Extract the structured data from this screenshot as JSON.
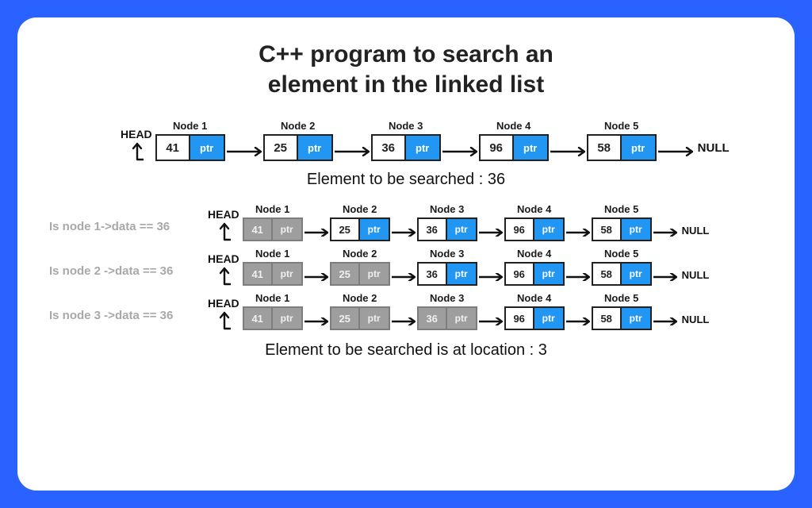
{
  "colors": {
    "page_bg": "#2962ff",
    "card_bg": "#ffffff",
    "ptr_bg": "#2196f3",
    "gray_bg": "#9e9e9e",
    "text": "#222222",
    "muted": "#a8a8a8"
  },
  "title_line1": "C++ program to search an",
  "title_line2": "element in the linked list",
  "head_label": "HEAD",
  "null_label": "NULL",
  "ptr_label": "ptr",
  "main_list": {
    "nodes": [
      {
        "label": "Node 1",
        "value": "41"
      },
      {
        "label": "Node 2",
        "value": "25"
      },
      {
        "label": "Node 3",
        "value": "36"
      },
      {
        "label": "Node 4",
        "value": "96"
      },
      {
        "label": "Node 5",
        "value": "58"
      }
    ]
  },
  "search_caption": "Element to be searched : 36",
  "steps": [
    {
      "label": "Is node 1->data == 36",
      "gray_through": 1,
      "nodes": [
        {
          "label": "Node 1",
          "value": "41"
        },
        {
          "label": "Node 2",
          "value": "25"
        },
        {
          "label": "Node 3",
          "value": "36"
        },
        {
          "label": "Node 4",
          "value": "96"
        },
        {
          "label": "Node 5",
          "value": "58"
        }
      ]
    },
    {
      "label": "Is node 2 ->data == 36",
      "gray_through": 2,
      "nodes": [
        {
          "label": "Node 1",
          "value": "41"
        },
        {
          "label": "Node 2",
          "value": "25"
        },
        {
          "label": "Node 3",
          "value": "36"
        },
        {
          "label": "Node 4",
          "value": "96"
        },
        {
          "label": "Node 5",
          "value": "58"
        }
      ]
    },
    {
      "label": "Is node 3 ->data == 36",
      "gray_through": 3,
      "nodes": [
        {
          "label": "Node 1",
          "value": "41"
        },
        {
          "label": "Node 2",
          "value": "25"
        },
        {
          "label": "Node 3",
          "value": "36"
        },
        {
          "label": "Node 4",
          "value": "96"
        },
        {
          "label": "Node 5",
          "value": "58"
        }
      ]
    }
  ],
  "result_caption": "Element to be searched is at location : 3"
}
